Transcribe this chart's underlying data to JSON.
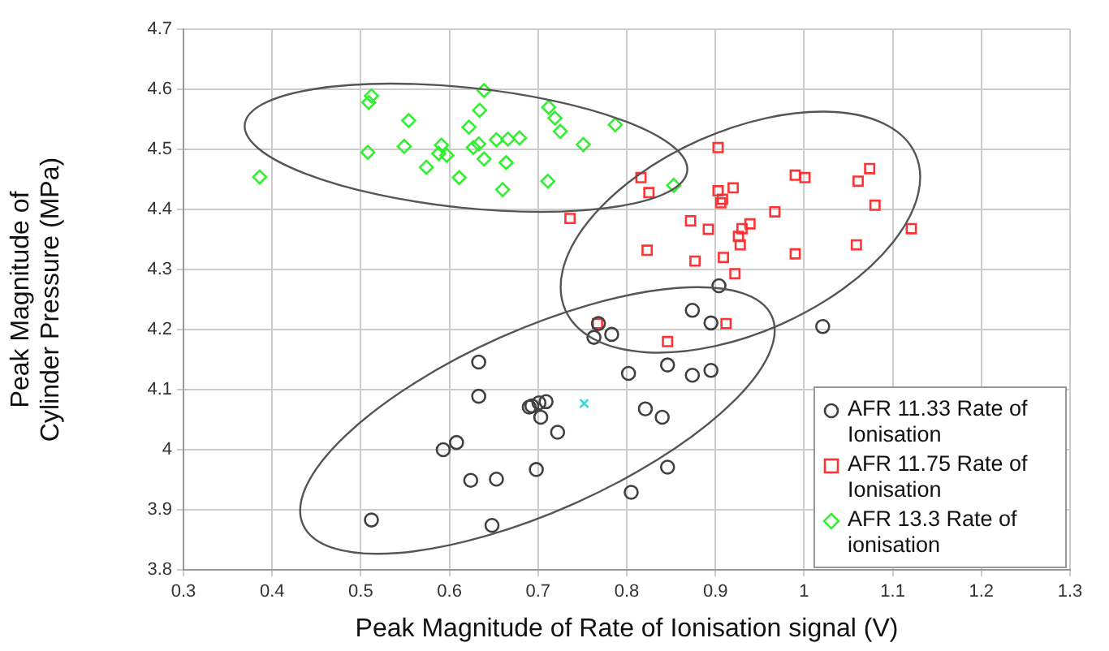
{
  "chart_data": {
    "type": "scatter",
    "xlabel": "Peak Magnitude of Rate of Ionisation signal (V)",
    "ylabel": "Peak Magnitude of Cylinder Pressure (MPa)",
    "xlim": [
      0.3,
      1.3
    ],
    "xticks": [
      0.3,
      0.4,
      0.5,
      0.6,
      0.7,
      0.8,
      0.9,
      1,
      1.1,
      1.2,
      1.3
    ],
    "ylim": [
      3.8,
      4.7
    ],
    "yticks": [
      3.8,
      3.9,
      4,
      4.1,
      4.2,
      4.3,
      4.4,
      4.5,
      4.6,
      4.7
    ],
    "grid": true,
    "legend": "bottom right",
    "series": [
      {
        "name": "AFR 11.33 Rate of Ionisation",
        "color": "#404040",
        "marker": "circle",
        "x": [
          0.904,
          0.874,
          0.895,
          1.021,
          0.768,
          0.763,
          0.783,
          0.633,
          0.802,
          0.846,
          0.874,
          0.895,
          0.633,
          0.69,
          0.693,
          0.701,
          0.709,
          0.703,
          0.722,
          0.821,
          0.84,
          0.593,
          0.608,
          0.624,
          0.653,
          0.698,
          0.846,
          0.805,
          0.512,
          0.648
        ],
        "values": [
          4.273,
          4.232,
          4.211,
          4.205,
          4.21,
          4.187,
          4.192,
          4.146,
          4.127,
          4.141,
          4.124,
          4.132,
          4.089,
          4.071,
          4.073,
          4.078,
          4.08,
          4.054,
          4.029,
          4.068,
          4.054,
          4.0,
          4.012,
          3.949,
          3.951,
          3.967,
          3.971,
          3.929,
          3.883,
          3.874
        ]
      },
      {
        "name": "AFR 11.75 Rate of Ionisation",
        "color": "#ff3333",
        "marker": "square",
        "x": [
          0.903,
          0.816,
          0.825,
          0.736,
          0.903,
          0.92,
          0.908,
          0.906,
          0.872,
          0.892,
          0.823,
          0.877,
          0.909,
          0.922,
          0.93,
          0.926,
          0.928,
          0.939,
          0.967,
          0.99,
          1.001,
          0.99,
          1.061,
          1.074,
          1.08,
          1.059,
          1.121,
          0.767,
          0.912,
          0.846
        ],
        "values": [
          4.503,
          4.453,
          4.428,
          4.385,
          4.431,
          4.436,
          4.417,
          4.411,
          4.381,
          4.367,
          4.332,
          4.314,
          4.32,
          4.293,
          4.368,
          4.355,
          4.341,
          4.376,
          4.396,
          4.457,
          4.453,
          4.326,
          4.447,
          4.468,
          4.407,
          4.341,
          4.368,
          4.21,
          4.21,
          4.18
        ]
      },
      {
        "name": "AFR 13.3 Rate of ionisation",
        "color": "#33ee33",
        "marker": "diamond",
        "x": [
          0.386,
          0.512,
          0.509,
          0.508,
          0.554,
          0.549,
          0.574,
          0.588,
          0.591,
          0.597,
          0.611,
          0.622,
          0.627,
          0.633,
          0.634,
          0.639,
          0.639,
          0.653,
          0.66,
          0.664,
          0.666,
          0.679,
          0.711,
          0.712,
          0.719,
          0.725,
          0.751,
          0.787,
          0.853
        ],
        "values": [
          4.454,
          4.589,
          4.578,
          4.495,
          4.548,
          4.505,
          4.47,
          4.493,
          4.507,
          4.49,
          4.453,
          4.537,
          4.503,
          4.509,
          4.565,
          4.598,
          4.484,
          4.516,
          4.433,
          4.478,
          4.517,
          4.519,
          4.447,
          4.57,
          4.552,
          4.53,
          4.508,
          4.541,
          4.44
        ]
      },
      {
        "color": "#33dddd",
        "marker": "cross",
        "x": [
          0.752
        ],
        "values": [
          4.077
        ]
      }
    ]
  }
}
